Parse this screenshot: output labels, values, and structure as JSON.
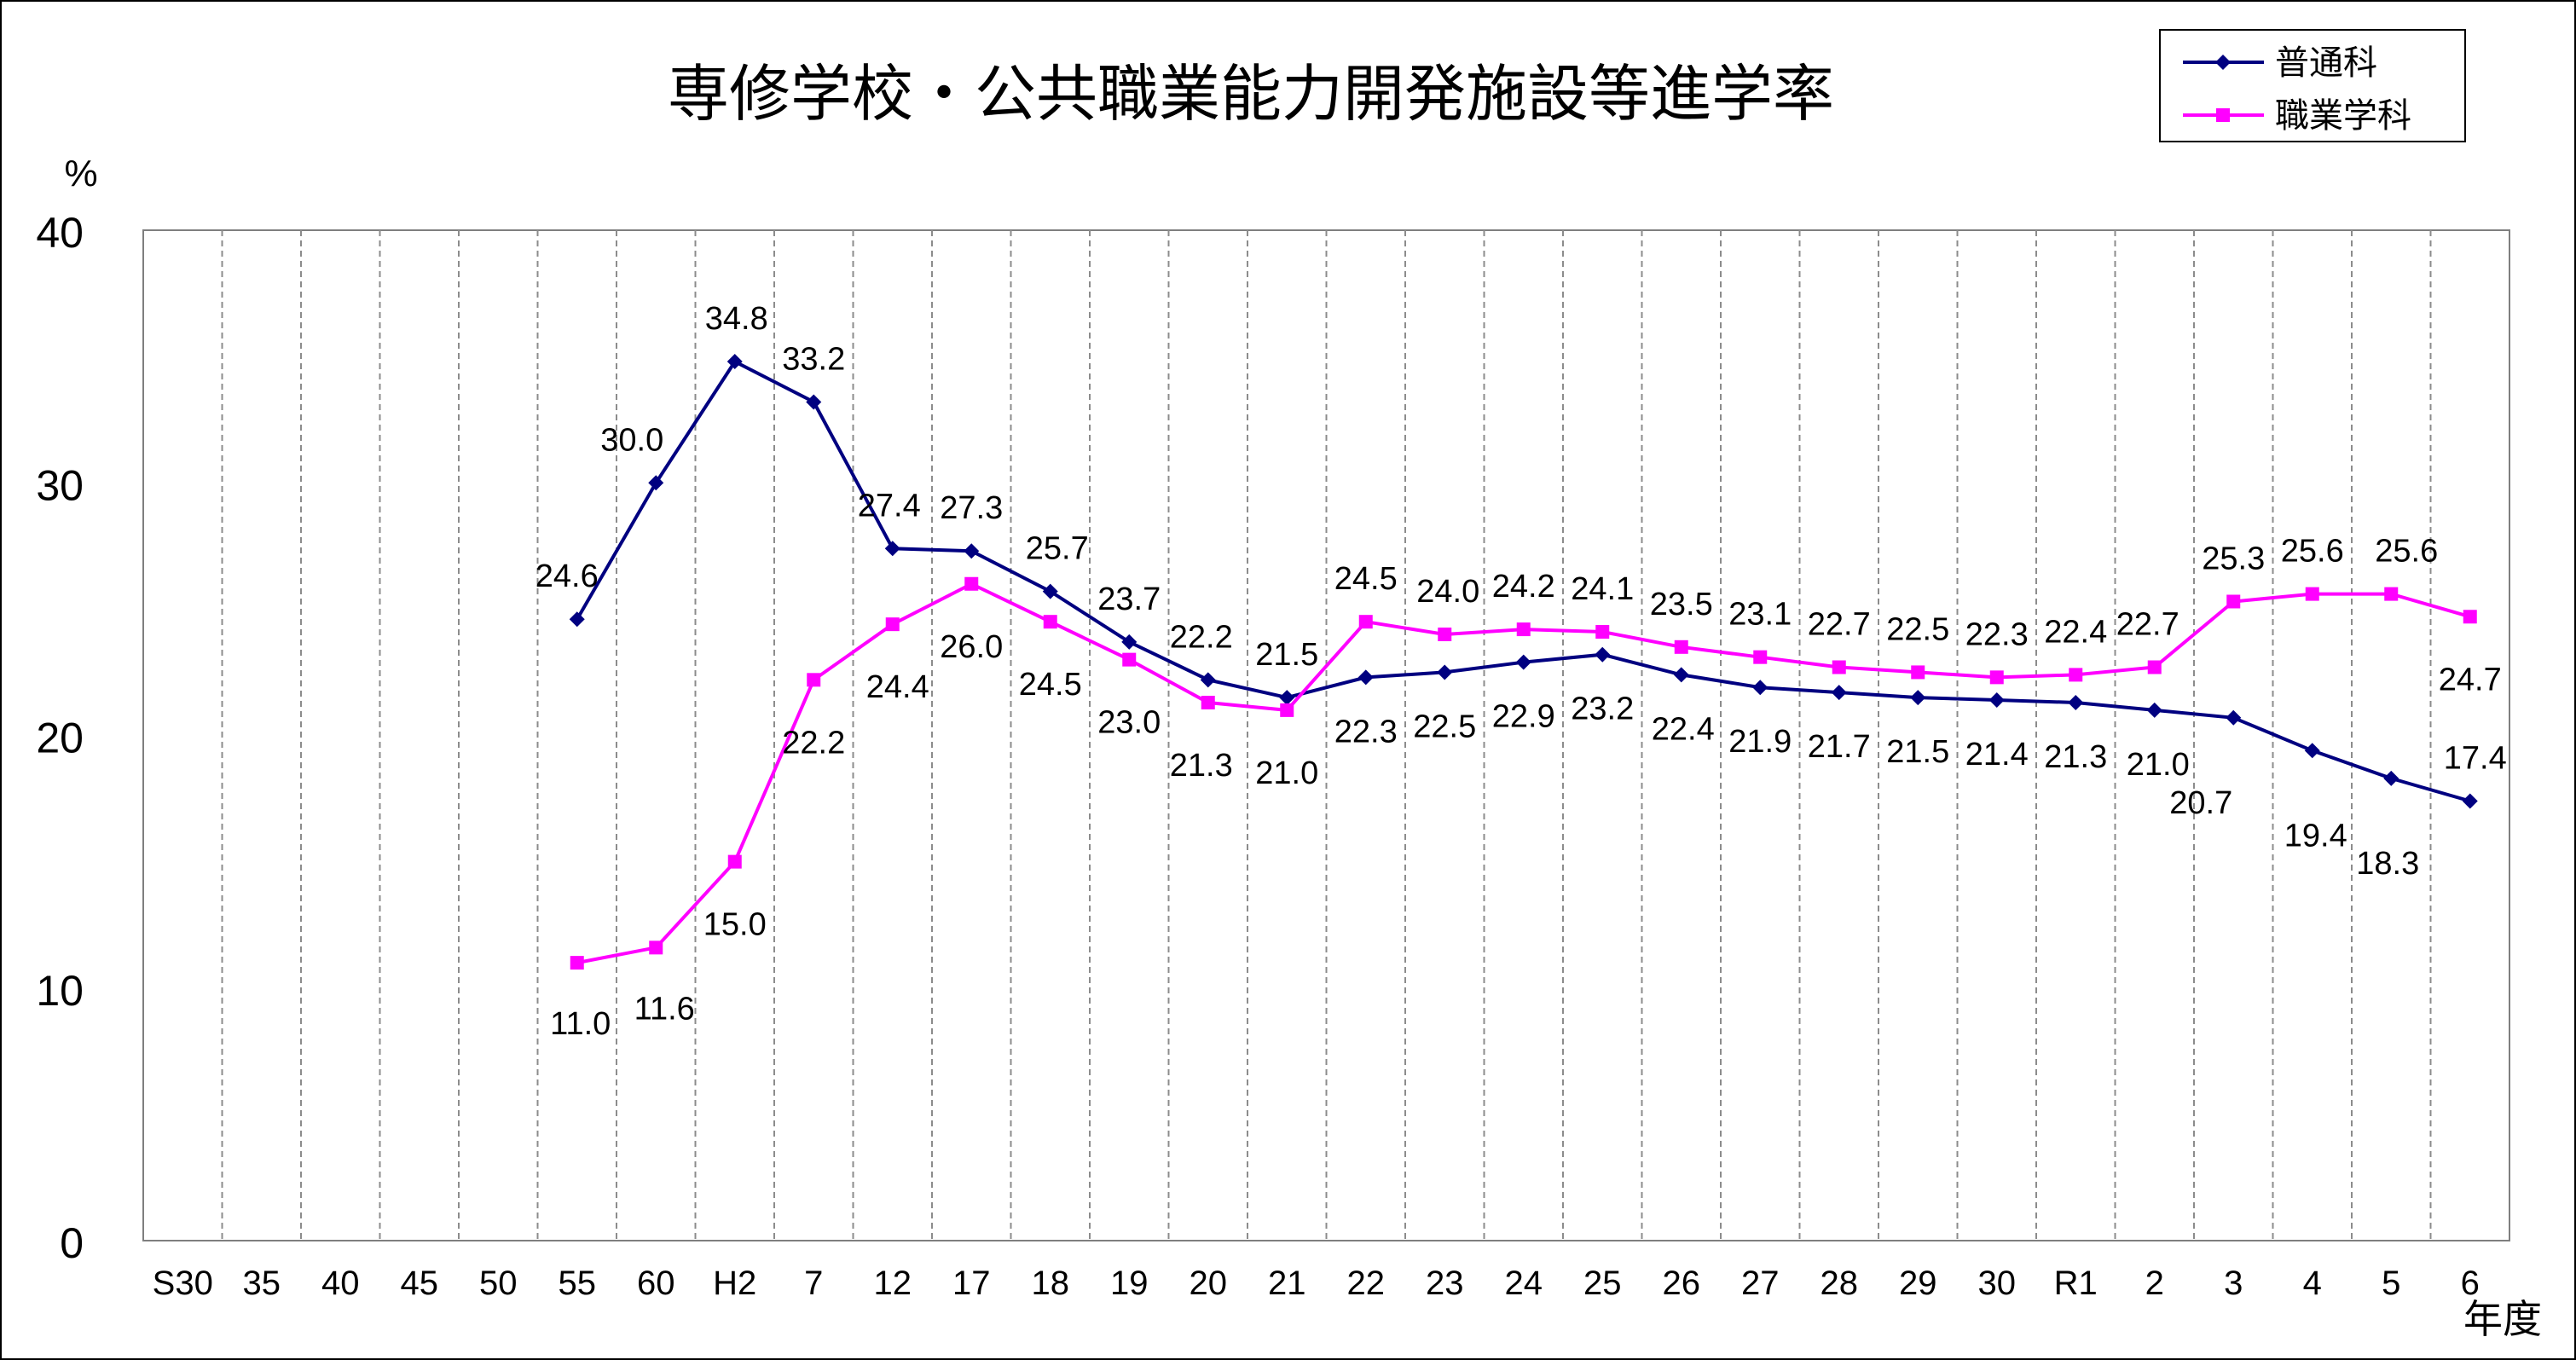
{
  "chart_data": {
    "type": "line",
    "title": "専修学校・公共職業能力開発施設等進学率",
    "ylabel": "%",
    "xlabel": "年度",
    "ylim": [
      0,
      40
    ],
    "yticks": [
      0,
      10,
      20,
      30,
      40
    ],
    "grid": "vertical-dashed",
    "legend_position": "top-right",
    "categories": [
      "S30",
      "35",
      "40",
      "45",
      "50",
      "55",
      "60",
      "H2",
      "7",
      "12",
      "17",
      "18",
      "19",
      "20",
      "21",
      "22",
      "23",
      "24",
      "25",
      "26",
      "27",
      "28",
      "29",
      "30",
      "R1",
      "2",
      "3",
      "4",
      "5",
      "6"
    ],
    "series": [
      {
        "name": "普通科",
        "color": "#000080",
        "marker": "diamond",
        "values": [
          null,
          null,
          null,
          null,
          null,
          24.6,
          30.0,
          34.8,
          33.2,
          27.4,
          27.3,
          25.7,
          23.7,
          22.2,
          21.5,
          22.3,
          22.5,
          22.9,
          23.2,
          22.4,
          21.9,
          21.7,
          21.5,
          21.4,
          21.3,
          21.0,
          20.7,
          19.4,
          18.3,
          17.4
        ],
        "labels": [
          null,
          null,
          null,
          null,
          null,
          "24.6",
          "30.0",
          "34.8",
          "33.2",
          "27.4",
          "27.3",
          "25.7",
          "23.7",
          "22.2",
          "21.5",
          "22.3",
          "22.5",
          "22.9",
          "23.2",
          "22.4",
          "21.9",
          "21.7",
          "21.5",
          "21.4",
          "21.3",
          "21.0",
          "20.7",
          "19.4",
          "18.3",
          "17.4"
        ]
      },
      {
        "name": "職業学科",
        "color": "#FF00FF",
        "marker": "square",
        "values": [
          null,
          null,
          null,
          null,
          null,
          11.0,
          11.6,
          15.0,
          22.2,
          24.4,
          26.0,
          24.5,
          23.0,
          21.3,
          21.0,
          24.5,
          24.0,
          24.2,
          24.1,
          23.5,
          23.1,
          22.7,
          22.5,
          22.3,
          22.4,
          22.7,
          25.3,
          25.6,
          25.6,
          24.7
        ],
        "labels": [
          null,
          null,
          null,
          null,
          null,
          "11.0",
          "11.6",
          "15.0",
          "22.2",
          "24.4",
          "26.0",
          "24.5",
          "23.0",
          "21.3",
          "21.0",
          "24.5",
          "24.0",
          "24.2",
          "24.1",
          "23.5",
          "23.1",
          "22.7",
          "22.5",
          "22.3",
          "22.4",
          "22.7",
          "25.3",
          "25.6",
          "25.6",
          "24.7"
        ]
      }
    ]
  }
}
